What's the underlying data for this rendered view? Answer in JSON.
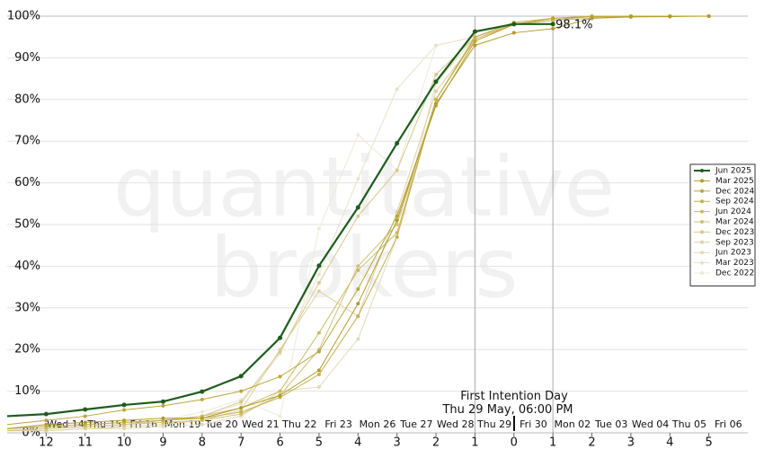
{
  "chart_data": {
    "type": "line",
    "watermark": "quantitative brokers",
    "x": [
      -13,
      -12,
      -11,
      -10,
      -9,
      -8,
      -7,
      -6,
      -5,
      -4,
      -3,
      -2,
      -1,
      0,
      1,
      2,
      3,
      4,
      5
    ],
    "xlim": [
      -13,
      6
    ],
    "ylim": [
      0,
      100
    ],
    "xticks": [
      {
        "value": -12,
        "label": "12"
      },
      {
        "value": -11,
        "label": "11"
      },
      {
        "value": -10,
        "label": "10"
      },
      {
        "value": -9,
        "label": "9"
      },
      {
        "value": -8,
        "label": "8"
      },
      {
        "value": -7,
        "label": "7"
      },
      {
        "value": -6,
        "label": "6"
      },
      {
        "value": -5,
        "label": "5"
      },
      {
        "value": -4,
        "label": "4"
      },
      {
        "value": -3,
        "label": "3"
      },
      {
        "value": -2,
        "label": "2"
      },
      {
        "value": -1,
        "label": "1"
      },
      0,
      1,
      2,
      3,
      4,
      5
    ],
    "x2ticks": [
      {
        "value": -11.5,
        "label": "Wed 14"
      },
      {
        "value": -10.5,
        "label": "Thu 15"
      },
      {
        "value": -9.5,
        "label": "Fri 16"
      },
      {
        "value": -8.5,
        "label": "Mon 19"
      },
      {
        "value": -7.5,
        "label": "Tue 20"
      },
      {
        "value": -6.5,
        "label": "Wed 21"
      },
      {
        "value": -5.5,
        "label": "Thu 22"
      },
      {
        "value": -4.5,
        "label": "Fri 23"
      },
      {
        "value": -3.5,
        "label": "Mon 26"
      },
      {
        "value": -2.5,
        "label": "Tue 27"
      },
      {
        "value": -1.5,
        "label": "Wed 28"
      },
      {
        "value": -0.5,
        "label": "Thu 29"
      },
      {
        "value": 0.5,
        "label": "Fri 30"
      },
      {
        "value": 1.5,
        "label": "Mon 02"
      },
      {
        "value": 2.5,
        "label": "Tue 03"
      },
      {
        "value": 3.5,
        "label": "Wed 04"
      },
      {
        "value": 4.5,
        "label": "Thu 05"
      },
      {
        "value": 5.5,
        "label": "Fri 06"
      }
    ],
    "yticks": [
      {
        "value": 0,
        "label": "0%"
      },
      {
        "value": 10,
        "label": "10%"
      },
      {
        "value": 20,
        "label": "20%"
      },
      {
        "value": 30,
        "label": "30%"
      },
      {
        "value": 40,
        "label": "40%"
      },
      {
        "value": 50,
        "label": "50%"
      },
      {
        "value": 60,
        "label": "60%"
      },
      {
        "value": 70,
        "label": "70%"
      },
      {
        "value": 80,
        "label": "80%"
      },
      {
        "value": 90,
        "label": "90%"
      },
      {
        "value": 100,
        "label": "100%"
      }
    ],
    "grid": true,
    "legend": "right",
    "vlines": [
      {
        "value": -1,
        "label": "First Intention Day\nThu 29 May, 06:00 PM"
      },
      {
        "value": 1
      }
    ],
    "annotations": [
      {
        "x": 1,
        "y": 98.1,
        "label": "98.1%"
      }
    ],
    "series": [
      {
        "name": "Jun 2025",
        "color": "#1e5c1e",
        "values": [
          4,
          4.5,
          5.6,
          6.7,
          7.5,
          9.9,
          13.6,
          22.8,
          40.1,
          54.1,
          69.5,
          84.3,
          96.3,
          98.1,
          98.1,
          null,
          null,
          null,
          null
        ]
      },
      {
        "name": "Mar 2025",
        "color": "#b39b2c",
        "values": [
          1,
          2,
          2.5,
          3,
          3.5,
          3.5,
          6,
          9,
          15,
          31,
          51,
          79,
          93,
          96,
          97,
          99.5,
          99.8,
          99.9,
          100
        ]
      },
      {
        "name": "Dec 2024",
        "color": "#bba63a",
        "values": [
          2,
          3,
          4,
          5.5,
          6.5,
          8,
          10,
          13.5,
          19.5,
          34.5,
          52,
          78.5,
          94,
          98,
          99.5,
          99.8,
          100,
          100,
          100
        ]
      },
      {
        "name": "Sep 2024",
        "color": "#c4b04e",
        "values": [
          1,
          1.5,
          2,
          2.5,
          3,
          3.5,
          5,
          8.5,
          14,
          28,
          47,
          80,
          95,
          98.5,
          99.5,
          100,
          100,
          100,
          100
        ]
      },
      {
        "name": "Jun 2024",
        "color": "#cbb964",
        "values": [
          1,
          1.5,
          2,
          2.5,
          3,
          4,
          6,
          10,
          24,
          39,
          48,
          80,
          94.5,
          98,
          99,
          99.5,
          100,
          100,
          100
        ]
      },
      {
        "name": "Mar 2024",
        "color": "#d1c079",
        "values": [
          0.5,
          1,
          1.5,
          2,
          2.5,
          3,
          4.5,
          9,
          20,
          40,
          50,
          80,
          95,
          98,
          99,
          100,
          100,
          100,
          100
        ]
      },
      {
        "name": "Dec 2023",
        "color": "#d7c98d",
        "values": [
          0.5,
          1,
          1.5,
          2,
          3,
          4,
          7.5,
          19.5,
          36,
          52,
          63,
          86,
          95,
          98,
          99,
          100,
          100,
          100,
          100
        ]
      },
      {
        "name": "Sep 2023",
        "color": "#ddd2a2",
        "values": [
          0.5,
          0.5,
          1,
          1.5,
          2,
          3,
          5.5,
          20,
          34,
          28,
          53,
          82,
          94,
          98,
          99,
          100,
          100,
          100,
          100
        ]
      },
      {
        "name": "Jun 2023",
        "color": "#e3dab6",
        "values": [
          0.5,
          0.5,
          1,
          1,
          1.5,
          2,
          4,
          10,
          11,
          22.5,
          47,
          84,
          95,
          98,
          99.5,
          100,
          100,
          100,
          100
        ]
      },
      {
        "name": "Mar 2023",
        "color": "#e8e2c8",
        "values": [
          0.5,
          1,
          1.5,
          2,
          3,
          4,
          7,
          19,
          38,
          61,
          82.5,
          93,
          95,
          98,
          99,
          100,
          100,
          100,
          100
        ]
      },
      {
        "name": "Dec 2022",
        "color": "#eeead8",
        "values": [
          0.5,
          1,
          1.5,
          2,
          3,
          5,
          8,
          4,
          49,
          71.5,
          63,
          93,
          95,
          98,
          99,
          100,
          100,
          100,
          100
        ]
      }
    ]
  }
}
